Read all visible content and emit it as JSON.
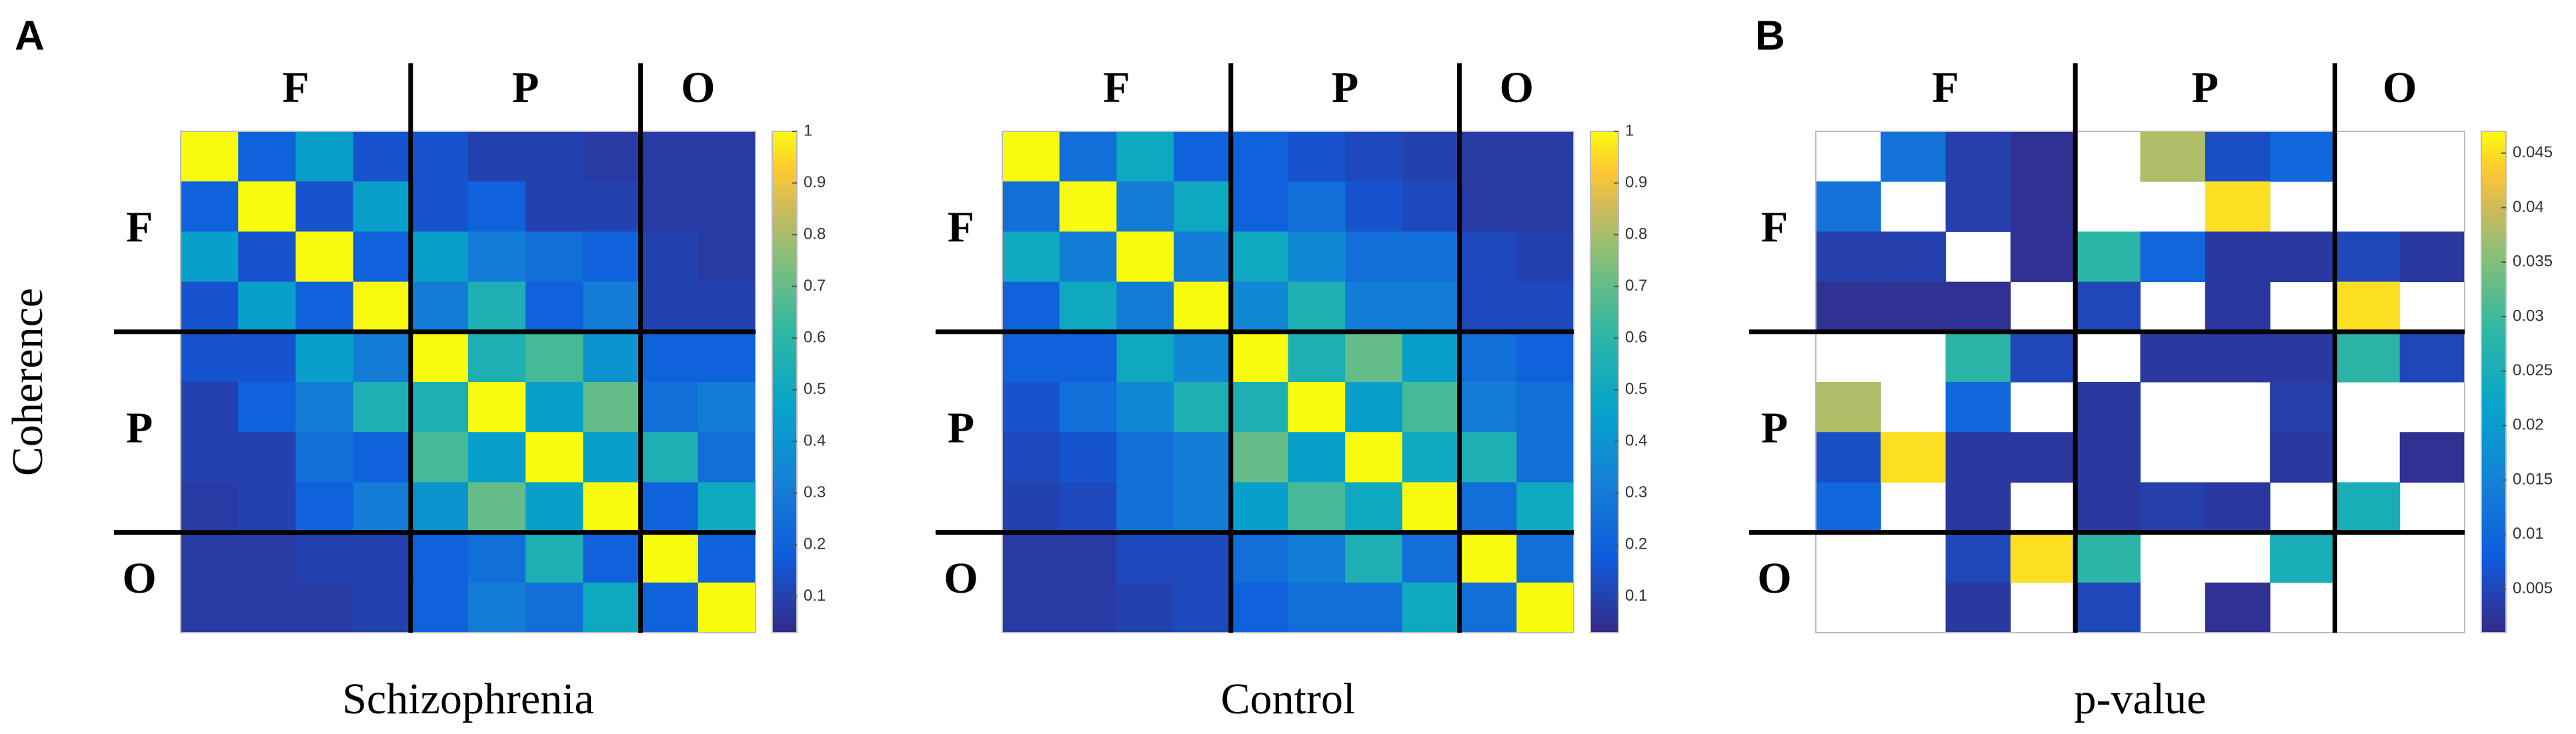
{
  "panel_labels": [
    "A",
    "B"
  ],
  "chart_data": [
    {
      "type": "heatmap",
      "ylabel": "Coherence",
      "xlabel": "Schizophrenia",
      "groups": [
        "F",
        "P",
        "O"
      ],
      "clim": [
        0.03,
        1
      ],
      "cticks": [
        0.1,
        0.2,
        0.3,
        0.4,
        0.5,
        0.6,
        0.7,
        0.8,
        0.9,
        1
      ],
      "z": [
        [
          1,
          0.2,
          0.45,
          0.15,
          0.15,
          0.1,
          0.1,
          0.08,
          0.08,
          0.08
        ],
        [
          0.2,
          1,
          0.15,
          0.45,
          0.15,
          0.2,
          0.1,
          0.1,
          0.08,
          0.08
        ],
        [
          0.45,
          0.15,
          1,
          0.2,
          0.45,
          0.3,
          0.25,
          0.2,
          0.1,
          0.08
        ],
        [
          0.15,
          0.45,
          0.2,
          1,
          0.3,
          0.55,
          0.2,
          0.3,
          0.1,
          0.1
        ],
        [
          0.15,
          0.15,
          0.45,
          0.3,
          1,
          0.55,
          0.65,
          0.4,
          0.2,
          0.2
        ],
        [
          0.1,
          0.2,
          0.3,
          0.55,
          0.55,
          1,
          0.45,
          0.7,
          0.25,
          0.3
        ],
        [
          0.1,
          0.1,
          0.25,
          0.2,
          0.65,
          0.45,
          1,
          0.45,
          0.55,
          0.25
        ],
        [
          0.08,
          0.1,
          0.2,
          0.3,
          0.4,
          0.7,
          0.45,
          1,
          0.2,
          0.5
        ],
        [
          0.08,
          0.08,
          0.1,
          0.1,
          0.2,
          0.25,
          0.55,
          0.2,
          1,
          0.2
        ],
        [
          0.08,
          0.08,
          0.08,
          0.1,
          0.2,
          0.3,
          0.25,
          0.5,
          0.2,
          1
        ]
      ]
    },
    {
      "type": "heatmap",
      "xlabel": "Control",
      "groups": [
        "F",
        "P",
        "O"
      ],
      "clim": [
        0.03,
        1
      ],
      "cticks": [
        0.1,
        0.2,
        0.3,
        0.4,
        0.5,
        0.6,
        0.7,
        0.8,
        0.9,
        1
      ],
      "z": [
        [
          1,
          0.25,
          0.5,
          0.2,
          0.2,
          0.15,
          0.12,
          0.1,
          0.08,
          0.08
        ],
        [
          0.25,
          1,
          0.3,
          0.5,
          0.2,
          0.25,
          0.15,
          0.12,
          0.08,
          0.08
        ],
        [
          0.5,
          0.3,
          1,
          0.3,
          0.5,
          0.35,
          0.25,
          0.25,
          0.12,
          0.1
        ],
        [
          0.2,
          0.5,
          0.3,
          1,
          0.35,
          0.55,
          0.3,
          0.3,
          0.12,
          0.12
        ],
        [
          0.2,
          0.2,
          0.5,
          0.35,
          1,
          0.55,
          0.7,
          0.45,
          0.25,
          0.2
        ],
        [
          0.15,
          0.25,
          0.35,
          0.55,
          0.55,
          1,
          0.45,
          0.65,
          0.3,
          0.25
        ],
        [
          0.12,
          0.15,
          0.25,
          0.3,
          0.7,
          0.45,
          1,
          0.5,
          0.55,
          0.25
        ],
        [
          0.1,
          0.12,
          0.25,
          0.3,
          0.45,
          0.65,
          0.5,
          1,
          0.25,
          0.5
        ],
        [
          0.08,
          0.08,
          0.12,
          0.12,
          0.25,
          0.3,
          0.55,
          0.25,
          1,
          0.25
        ],
        [
          0.08,
          0.08,
          0.1,
          0.12,
          0.2,
          0.25,
          0.25,
          0.5,
          0.25,
          1
        ]
      ]
    },
    {
      "type": "heatmap",
      "xlabel": "p-value",
      "groups": [
        "F",
        "P",
        "O"
      ],
      "clim": [
        0.001,
        0.047
      ],
      "cticks": [
        0.005,
        0.01,
        0.015,
        0.02,
        0.025,
        0.03,
        0.035,
        0.04,
        0.045
      ],
      "z": [
        [
          null,
          0.012,
          0.004,
          0.002,
          null,
          0.038,
          0.006,
          0.01,
          null,
          null
        ],
        [
          0.012,
          null,
          0.004,
          0.002,
          null,
          null,
          0.045,
          null,
          null,
          null
        ],
        [
          0.004,
          0.004,
          null,
          0.002,
          0.028,
          0.01,
          0.003,
          0.003,
          0.005,
          0.003
        ],
        [
          0.002,
          0.002,
          0.002,
          null,
          0.005,
          null,
          0.003,
          null,
          0.045,
          null
        ],
        [
          null,
          null,
          0.028,
          0.005,
          null,
          0.003,
          0.003,
          0.003,
          0.028,
          0.005
        ],
        [
          0.038,
          null,
          0.01,
          null,
          0.003,
          null,
          null,
          0.004,
          null,
          null
        ],
        [
          0.006,
          0.045,
          0.003,
          0.003,
          0.003,
          null,
          null,
          0.003,
          null,
          0.002
        ],
        [
          0.01,
          null,
          0.003,
          null,
          0.003,
          0.004,
          0.003,
          null,
          0.025,
          null
        ],
        [
          null,
          null,
          0.005,
          0.045,
          0.028,
          null,
          null,
          0.025,
          null,
          null
        ],
        [
          null,
          null,
          0.003,
          null,
          0.005,
          null,
          0.002,
          null,
          null,
          null
        ]
      ]
    }
  ]
}
